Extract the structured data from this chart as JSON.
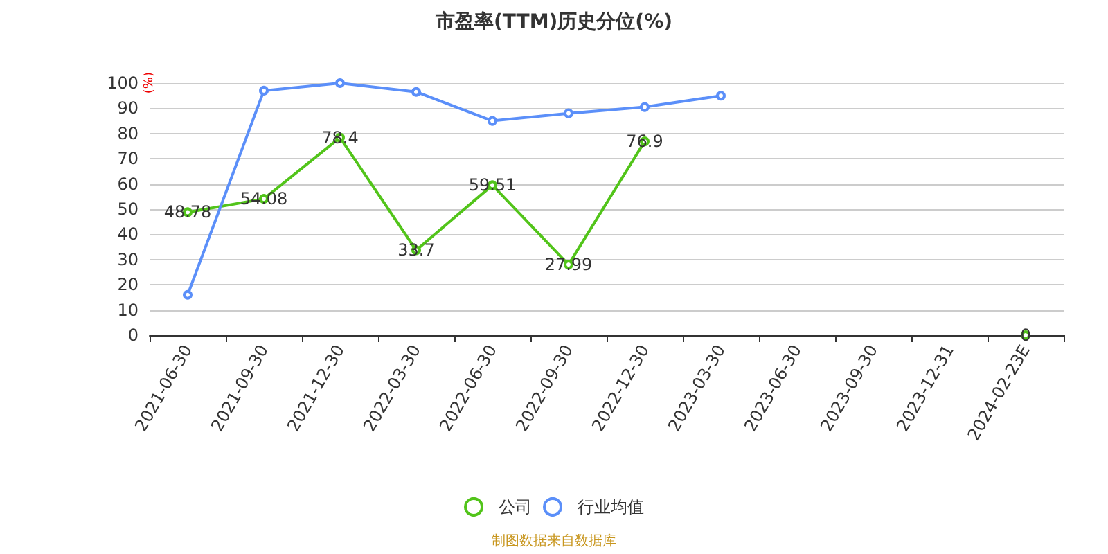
{
  "chart_data": {
    "type": "line",
    "title": "市盈率(TTM)历史分位(%)",
    "ylabel": "(%)",
    "categories": [
      "2021-06-30",
      "2021-09-30",
      "2021-12-30",
      "2022-03-30",
      "2022-06-30",
      "2022-09-30",
      "2022-12-30",
      "2023-03-30",
      "2023-06-30",
      "2023-09-30",
      "2023-12-31",
      "2024-02-23E"
    ],
    "series": [
      {
        "name": "公司",
        "color": "#52c41a",
        "values": [
          48.78,
          54.08,
          78.4,
          33.7,
          59.51,
          27.99,
          76.9,
          null,
          null,
          null,
          null,
          0
        ],
        "value_labels": [
          "48.78",
          "54.08",
          "78.4",
          "33.7",
          "59.51",
          "27.99",
          "76.9",
          null,
          null,
          null,
          null,
          "0"
        ]
      },
      {
        "name": "行业均值",
        "color": "#5b8ff9",
        "values": [
          16,
          97,
          100,
          96.5,
          85,
          88,
          90.5,
          95,
          null,
          null,
          null,
          null
        ]
      }
    ],
    "ylim": [
      0,
      100
    ],
    "yticks": [
      0,
      10,
      20,
      30,
      40,
      50,
      60,
      70,
      80,
      90,
      100
    ],
    "grid": "y",
    "legend": "bottom",
    "marker": "circle",
    "line_style": "solid",
    "annotations": [
      "制图数据来自数据库"
    ]
  }
}
